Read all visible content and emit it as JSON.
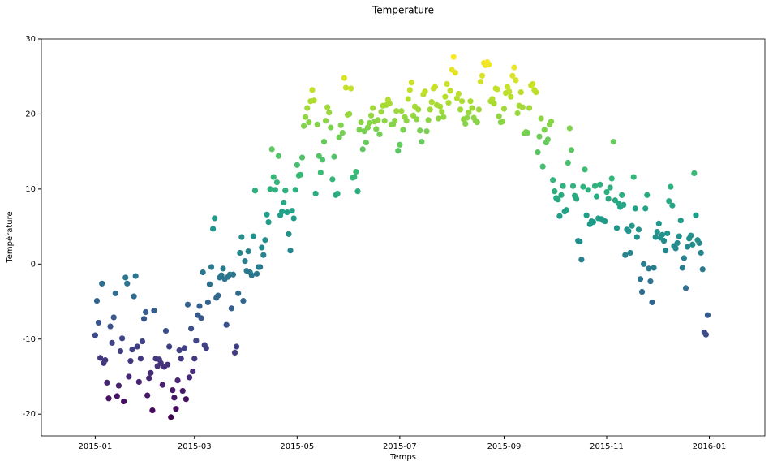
{
  "chart_data": {
    "type": "scatter",
    "title": "Temperature",
    "x_label": "Temps",
    "y_label": "Température",
    "colormap": "viridis",
    "xlim": [
      -32,
      398
    ],
    "ylim": [
      -22.9,
      30
    ],
    "xticks": [
      {
        "value": 0,
        "label": "2015-01"
      },
      {
        "value": 59,
        "label": "2015-03"
      },
      {
        "value": 120,
        "label": "2015-05"
      },
      {
        "value": 181,
        "label": "2015-07"
      },
      {
        "value": 243,
        "label": "2015-09"
      },
      {
        "value": 304,
        "label": "2015-11"
      },
      {
        "value": 365,
        "label": "2016-01"
      }
    ],
    "yticks": [
      -20,
      -10,
      0,
      10,
      20,
      30
    ],
    "x": [
      0,
      1,
      2,
      3,
      4,
      5,
      6,
      7,
      8,
      9,
      10,
      11,
      12,
      13,
      14,
      15,
      16,
      17,
      18,
      19,
      20,
      21,
      22,
      23,
      24,
      25,
      26,
      27,
      28,
      29,
      30,
      31,
      32,
      33,
      34,
      35,
      36,
      37,
      38,
      39,
      40,
      41,
      42,
      43,
      44,
      45,
      46,
      47,
      48,
      49,
      50,
      51,
      52,
      53,
      54,
      55,
      56,
      57,
      58,
      59,
      60,
      61,
      62,
      63,
      64,
      65,
      66,
      67,
      68,
      69,
      70,
      71,
      72,
      73,
      74,
      75,
      76,
      77,
      78,
      79,
      80,
      81,
      82,
      83,
      84,
      85,
      86,
      87,
      88,
      89,
      90,
      91,
      92,
      93,
      94,
      95,
      96,
      97,
      98,
      99,
      100,
      101,
      102,
      103,
      104,
      105,
      106,
      107,
      108,
      109,
      110,
      111,
      112,
      113,
      114,
      115,
      116,
      117,
      118,
      119,
      120,
      121,
      122,
      123,
      124,
      125,
      126,
      127,
      128,
      129,
      130,
      131,
      132,
      133,
      134,
      135,
      136,
      137,
      138,
      139,
      140,
      141,
      142,
      143,
      144,
      145,
      146,
      147,
      148,
      149,
      150,
      151,
      152,
      153,
      154,
      155,
      156,
      157,
      158,
      159,
      160,
      161,
      162,
      163,
      164,
      165,
      166,
      167,
      168,
      169,
      170,
      171,
      172,
      173,
      174,
      175,
      176,
      177,
      178,
      179,
      180,
      181,
      182,
      183,
      184,
      185,
      186,
      187,
      188,
      189,
      190,
      191,
      192,
      193,
      194,
      195,
      196,
      197,
      198,
      199,
      200,
      201,
      202,
      203,
      204,
      205,
      206,
      207,
      208,
      209,
      210,
      211,
      212,
      213,
      214,
      215,
      216,
      217,
      218,
      219,
      220,
      221,
      222,
      223,
      224,
      225,
      226,
      227,
      228,
      229,
      230,
      231,
      232,
      233,
      234,
      235,
      236,
      237,
      238,
      239,
      240,
      241,
      242,
      243,
      244,
      245,
      246,
      247,
      248,
      249,
      250,
      251,
      252,
      253,
      254,
      255,
      256,
      257,
      258,
      259,
      260,
      261,
      262,
      263,
      264,
      265,
      266,
      267,
      268,
      269,
      270,
      271,
      272,
      273,
      274,
      275,
      276,
      277,
      278,
      279,
      280,
      281,
      282,
      283,
      284,
      285,
      286,
      287,
      288,
      289,
      290,
      291,
      292,
      293,
      294,
      295,
      296,
      297,
      298,
      299,
      300,
      301,
      302,
      303,
      304,
      305,
      306,
      307,
      308,
      309,
      310,
      311,
      312,
      313,
      314,
      315,
      316,
      317,
      318,
      319,
      320,
      321,
      322,
      323,
      324,
      325,
      326,
      327,
      328,
      329,
      330,
      331,
      332,
      333,
      334,
      335,
      336,
      337,
      338,
      339,
      340,
      341,
      342,
      343,
      344,
      345,
      346,
      347,
      348,
      349,
      350,
      351,
      352,
      353,
      354,
      355,
      356,
      357,
      358,
      359,
      360,
      361,
      362,
      363,
      364
    ],
    "values": [
      -9.5,
      -4.9,
      -7.8,
      -12.5,
      -2.6,
      -13.2,
      -12.8,
      -15.8,
      -17.9,
      -8.3,
      -10.5,
      -7.1,
      -3.9,
      -17.6,
      -16.2,
      -11.6,
      -9.9,
      -18.3,
      -1.8,
      -2.6,
      -15.0,
      -12.9,
      -11.4,
      -4.3,
      -1.6,
      -11.0,
      -15.7,
      -12.6,
      -10.3,
      -7.3,
      -6.4,
      -17.5,
      -15.2,
      -14.5,
      -19.5,
      -6.2,
      -12.6,
      -13.6,
      -12.7,
      -13.2,
      -16.1,
      -13.7,
      -8.9,
      -13.4,
      -11.0,
      -20.4,
      -16.8,
      -17.8,
      -19.3,
      -15.5,
      -11.5,
      -12.6,
      -16.9,
      -11.2,
      -18.0,
      -5.4,
      -15.1,
      -8.6,
      -14.3,
      -12.6,
      -10.2,
      -6.8,
      -5.6,
      -7.2,
      -1.1,
      -10.8,
      -11.2,
      -5.1,
      -2.7,
      -0.4,
      4.7,
      6.1,
      -4.5,
      -4.2,
      -1.8,
      -1.5,
      -0.6,
      -2.0,
      -8.1,
      -1.7,
      -1.4,
      -5.9,
      -1.4,
      -11.8,
      -11.0,
      -3.9,
      1.5,
      3.6,
      -4.9,
      0.4,
      -0.9,
      1.7,
      -1.1,
      -1.5,
      3.7,
      9.8,
      -1.3,
      -0.4,
      -0.4,
      2.2,
      1.2,
      3.2,
      6.6,
      5.6,
      10.0,
      15.3,
      11.6,
      9.9,
      10.9,
      14.4,
      6.5,
      7.0,
      8.2,
      9.8,
      6.9,
      4.0,
      1.8,
      7.1,
      6.1,
      9.9,
      13.2,
      11.8,
      11.9,
      14.2,
      18.4,
      19.6,
      20.8,
      18.9,
      21.7,
      23.2,
      21.8,
      9.4,
      18.6,
      14.4,
      12.2,
      13.9,
      16.3,
      19.1,
      20.9,
      20.2,
      18.2,
      11.3,
      14.3,
      9.2,
      9.4,
      16.9,
      18.5,
      17.5,
      24.8,
      23.5,
      19.9,
      20.0,
      23.4,
      11.5,
      11.6,
      12.3,
      9.7,
      17.9,
      18.9,
      15.3,
      17.7,
      16.2,
      18.2,
      18.8,
      19.8,
      20.8,
      19.0,
      18.0,
      19.2,
      17.3,
      20.3,
      21.1,
      19.1,
      21.2,
      21.9,
      21.4,
      18.6,
      18.6,
      19.1,
      20.4,
      15.1,
      15.9,
      20.4,
      17.9,
      19.6,
      19.1,
      22.0,
      23.2,
      24.2,
      19.8,
      21.0,
      19.3,
      20.6,
      17.8,
      16.3,
      22.6,
      23.0,
      17.7,
      19.2,
      20.6,
      21.6,
      23.4,
      23.6,
      21.2,
      19.4,
      21.0,
      20.3,
      19.6,
      22.3,
      24.0,
      21.5,
      23.1,
      25.9,
      27.6,
      25.5,
      22.1,
      22.7,
      20.6,
      21.7,
      19.3,
      18.7,
      19.5,
      20.2,
      21.7,
      20.8,
      19.5,
      19.1,
      18.9,
      20.6,
      24.3,
      25.1,
      26.8,
      26.5,
      26.9,
      26.6,
      21.7,
      22.0,
      21.4,
      23.4,
      23.3,
      19.7,
      18.9,
      19.0,
      20.7,
      22.8,
      23.6,
      23.0,
      22.3,
      25.1,
      26.2,
      24.5,
      20.1,
      21.1,
      22.9,
      20.9,
      17.4,
      17.6,
      17.5,
      20.8,
      23.8,
      24.0,
      23.2,
      22.9,
      14.9,
      17.0,
      19.4,
      13.0,
      17.9,
      16.2,
      16.6,
      18.6,
      19.0,
      11.2,
      9.7,
      8.8,
      8.6,
      6.4,
      9.2,
      10.4,
      7.0,
      7.2,
      13.5,
      18.1,
      15.2,
      10.4,
      9.1,
      8.7,
      3.1,
      3.0,
      0.6,
      10.3,
      12.6,
      6.5,
      9.9,
      5.3,
      5.7,
      5.6,
      10.4,
      9.0,
      6.1,
      10.6,
      6.0,
      5.8,
      5.7,
      9.6,
      8.7,
      10.2,
      11.4,
      16.3,
      8.5,
      4.8,
      8.1,
      7.6,
      9.2,
      7.9,
      1.2,
      4.6,
      4.4,
      1.5,
      5.1,
      11.6,
      7.4,
      3.6,
      4.6,
      -2.0,
      -3.7,
      0.0,
      7.4,
      9.2,
      -0.6,
      -2.3,
      -5.1,
      -0.5,
      3.6,
      4.3,
      5.4,
      3.5,
      3.9,
      3.1,
      1.8,
      4.1,
      8.4,
      10.3,
      7.8,
      2.4,
      2.1,
      2.8,
      3.7,
      5.8,
      -0.5,
      0.8,
      -3.2,
      2.3,
      3.4,
      3.8,
      2.6,
      12.1,
      6.5,
      3.2,
      2.8,
      1.5,
      -0.7,
      -9.1,
      -9.4,
      -6.8
    ]
  }
}
